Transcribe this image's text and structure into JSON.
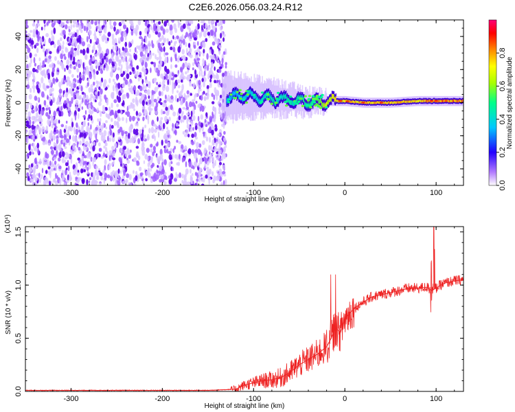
{
  "title": "C2E6.2026.056.03.24.R12",
  "chart_data": [
    {
      "type": "heatmap",
      "xlabel": "Height of straight line (km)",
      "ylabel": "Frequency (Hz)",
      "xlim": [
        -350,
        130
      ],
      "ylim": [
        -50,
        50
      ],
      "x_ticks": [
        -300,
        -200,
        -100,
        0,
        100
      ],
      "x_tick_labels": [
        "-300",
        "-200",
        "-100",
        "0",
        "100"
      ],
      "y_ticks": [
        -40,
        -20,
        0,
        20,
        40
      ],
      "y_tick_labels": [
        "-40",
        "-20",
        "0",
        "20",
        "40"
      ],
      "colorbar": {
        "label": "Normalized spectral amplitude",
        "range": [
          0,
          1
        ],
        "ticks": [
          0.0,
          0.2,
          0.4,
          0.6,
          0.8
        ],
        "tick_labels": [
          "0.0",
          "0.2",
          "0.4",
          "0.6",
          "0.8"
        ],
        "colors": [
          "#ffffff",
          "#6a00ff",
          "#0000ff",
          "#00d4ff",
          "#00ff66",
          "#ffff00",
          "#ff7f00",
          "#ff0000",
          "#ff0088"
        ]
      },
      "noise_region_x": [
        -350,
        -130
      ],
      "signal_trace": {
        "x": [
          -130,
          -110,
          -90,
          -70,
          -50,
          -35,
          -20,
          0,
          20,
          50,
          80,
          100,
          130
        ],
        "center_freq": [
          3,
          4,
          3,
          2,
          1,
          0,
          1,
          1,
          0,
          0,
          1,
          1,
          1
        ],
        "amplitude": [
          0.35,
          0.4,
          0.45,
          0.45,
          0.5,
          0.5,
          0.7,
          0.75,
          0.8,
          0.8,
          0.8,
          0.85,
          0.85
        ]
      }
    },
    {
      "type": "line",
      "xlabel": "Height of straight line (km)",
      "ylabel": "SNR (10 * v/v)",
      "y_multiplier_label": "(x10⁴)",
      "xlim": [
        -350,
        130
      ],
      "ylim": [
        0,
        1.55
      ],
      "x_ticks": [
        -300,
        -200,
        -100,
        0,
        100
      ],
      "x_tick_labels": [
        "-300",
        "-200",
        "-100",
        "0",
        "100"
      ],
      "y_ticks": [
        0,
        0.5,
        1.0,
        1.5
      ],
      "y_tick_labels": [
        "0.0",
        "0.5",
        "1.0",
        "1.5"
      ],
      "series": [
        {
          "color": "#ee2222",
          "x": [
            -350,
            -300,
            -250,
            -200,
            -150,
            -120,
            -110,
            -100,
            -90,
            -80,
            -70,
            -60,
            -50,
            -40,
            -30,
            -20,
            -15,
            -10,
            -5,
            0,
            10,
            20,
            30,
            40,
            50,
            60,
            70,
            80,
            90,
            95,
            100,
            105,
            110,
            120,
            130
          ],
          "y": [
            0.01,
            0.01,
            0.01,
            0.01,
            0.01,
            0.02,
            0.06,
            0.08,
            0.1,
            0.11,
            0.13,
            0.18,
            0.25,
            0.3,
            0.35,
            0.42,
            0.5,
            0.6,
            0.55,
            0.68,
            0.78,
            0.84,
            0.89,
            0.91,
            0.93,
            0.95,
            0.97,
            0.97,
            0.98,
            0.95,
            0.97,
            1.0,
            1.02,
            1.04,
            1.05
          ]
        }
      ]
    }
  ]
}
